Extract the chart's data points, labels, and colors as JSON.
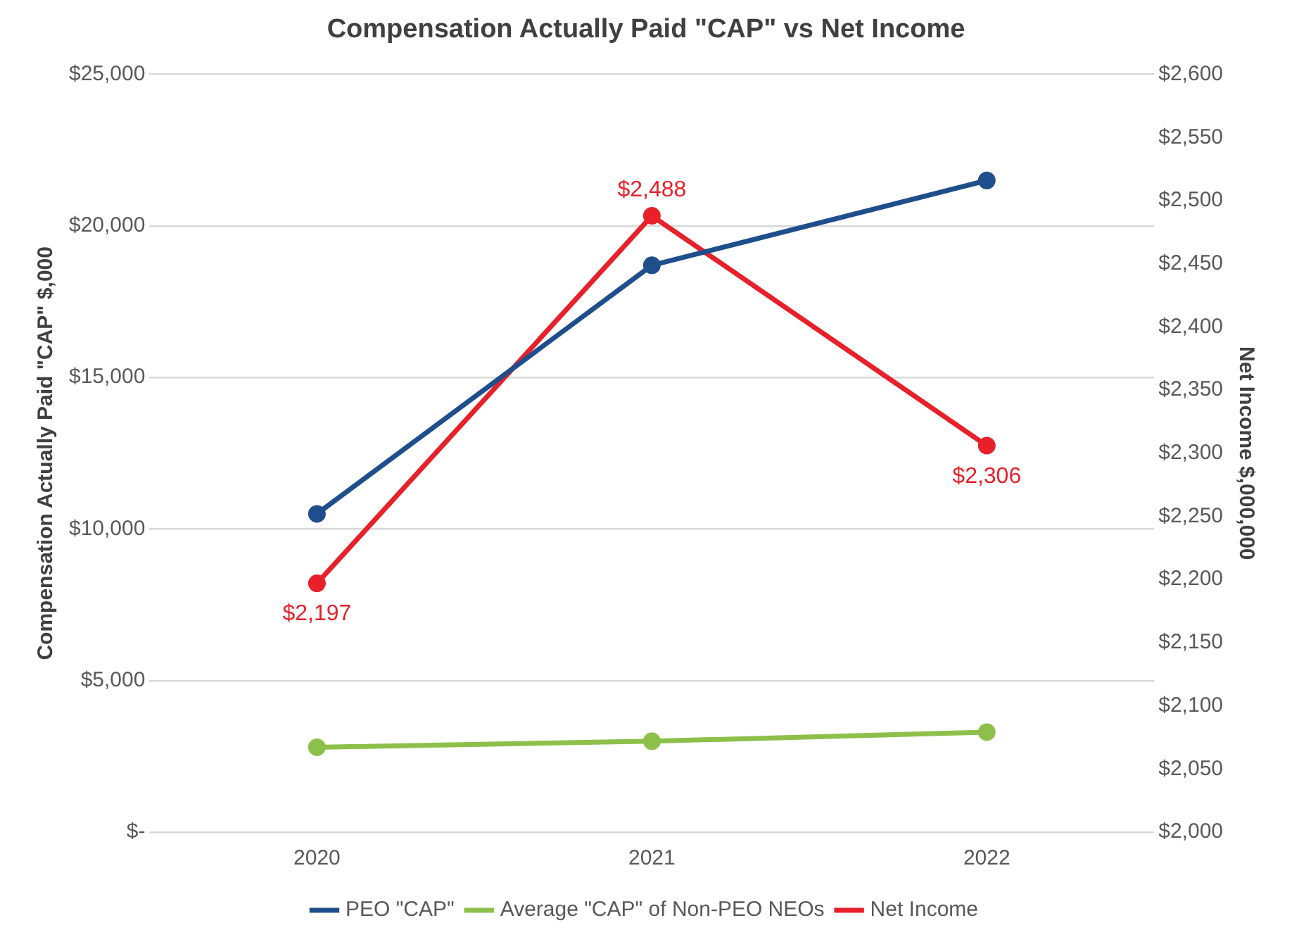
{
  "chart_data": {
    "type": "line",
    "title": "Compensation Actually Paid \"CAP\" vs Net Income",
    "categories": [
      "2020",
      "2021",
      "2022"
    ],
    "ylabel": "Compensation Actually Paid \"CAP\" $,000",
    "y2label": "Net Income $,000,000",
    "series": [
      {
        "name": "PEO \"CAP\"",
        "color": "#1f4e8c",
        "values": [
          10500,
          18700,
          21500
        ]
      },
      {
        "name": "Average \"CAP\" of Non-PEO NEOs",
        "color": "#8dc04a",
        "values": [
          2800,
          3000,
          3300
        ]
      },
      {
        "name": "Net Income",
        "color": "#e8202a",
        "axis": "y2",
        "values": [
          2197,
          2488,
          2306
        ],
        "value_labels": [
          "$2,197",
          "$2,488",
          "$2,306"
        ]
      }
    ],
    "ylim": [
      0,
      25000
    ],
    "yticks": [
      {
        "value": 0,
        "label": "$-"
      },
      {
        "value": 5000,
        "label": "$5,000"
      },
      {
        "value": 10000,
        "label": "$10,000"
      },
      {
        "value": 15000,
        "label": "$15,000"
      },
      {
        "value": 20000,
        "label": "$20,000"
      },
      {
        "value": 25000,
        "label": "$25,000"
      }
    ],
    "y2lim": [
      2000,
      2600
    ],
    "y2ticks": [
      {
        "value": 2000,
        "label": "$2,000"
      },
      {
        "value": 2050,
        "label": "$2,050"
      },
      {
        "value": 2100,
        "label": "$2,100"
      },
      {
        "value": 2150,
        "label": "$2,150"
      },
      {
        "value": 2200,
        "label": "$2,200"
      },
      {
        "value": 2250,
        "label": "$2,250"
      },
      {
        "value": 2300,
        "label": "$2,300"
      },
      {
        "value": 2350,
        "label": "$2,350"
      },
      {
        "value": 2400,
        "label": "$2,400"
      },
      {
        "value": 2450,
        "label": "$2,450"
      },
      {
        "value": 2500,
        "label": "$2,500"
      },
      {
        "value": 2550,
        "label": "$2,550"
      },
      {
        "value": 2600,
        "label": "$2,600"
      }
    ],
    "grid": "y",
    "legend": "bottom",
    "marker": "circle",
    "line_style": "solid"
  }
}
